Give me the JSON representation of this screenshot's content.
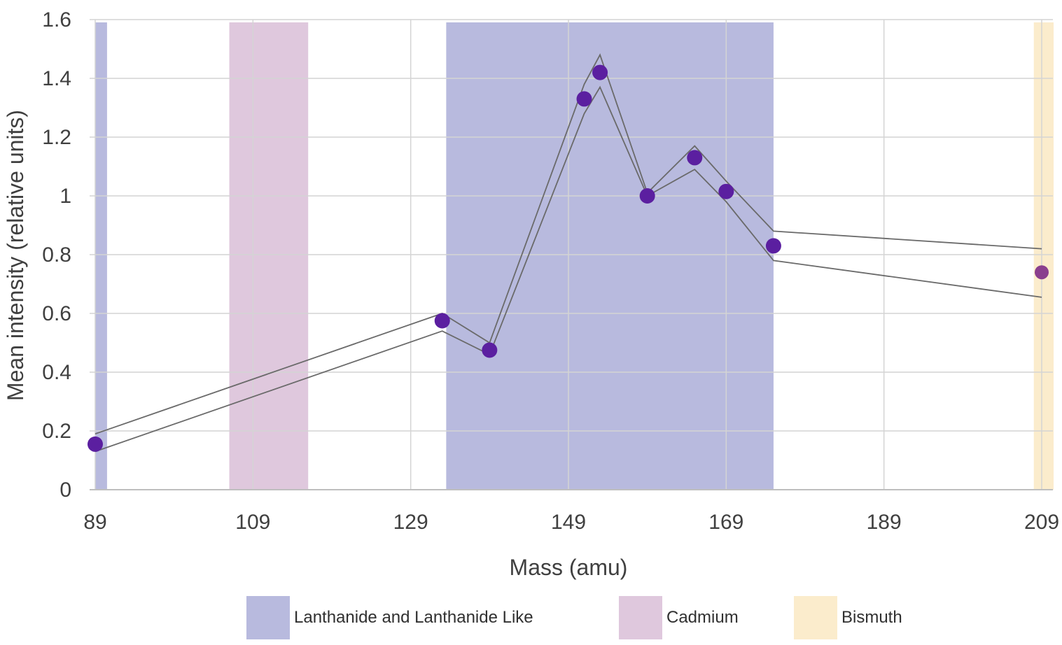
{
  "chart_data": {
    "type": "scatter",
    "xlabel": "Mass (amu)",
    "ylabel": "Mean intensity (relative units)",
    "xlim": [
      89,
      209
    ],
    "ylim": [
      0,
      1.6
    ],
    "x_ticks": [
      89,
      109,
      129,
      149,
      169,
      189,
      209
    ],
    "y_ticks": [
      0,
      0.2,
      0.4,
      0.6,
      0.8,
      1,
      1.2,
      1.4,
      1.6
    ],
    "grid": true,
    "legend_position": "bottom",
    "series": [
      {
        "color": "#5b1fa0",
        "x": [
          89,
          133,
          139,
          151,
          153,
          159,
          165,
          169,
          175,
          209
        ],
        "y": [
          0.155,
          0.575,
          0.475,
          1.33,
          1.42,
          1.0,
          1.13,
          1.015,
          0.83,
          0.74
        ],
        "upper": [
          0.19,
          0.6,
          0.5,
          1.38,
          1.48,
          1.01,
          1.17,
          1.05,
          0.88,
          0.82
        ],
        "lower": [
          0.13,
          0.54,
          0.46,
          1.28,
          1.37,
          1.0,
          1.09,
          0.98,
          0.78,
          0.655
        ]
      }
    ],
    "bands": [
      {
        "name": "Lanthanide and Lanthanide Like",
        "color": "#b8bade",
        "ranges": [
          [
            89,
            90.5
          ],
          [
            133.5,
            175
          ]
        ]
      },
      {
        "name": "Cadmium",
        "color": "#dfc8dd",
        "ranges": [
          [
            106,
            116
          ]
        ]
      },
      {
        "name": "Bismuth",
        "color": "#fbeccc",
        "ranges": [
          [
            208,
            211
          ]
        ]
      }
    ],
    "legend": [
      {
        "label": "Lanthanide and Lanthanide Like",
        "color": "#b8bade"
      },
      {
        "label": "Cadmium",
        "color": "#dfc8dd"
      },
      {
        "label": "Bismuth",
        "color": "#fbeccc"
      }
    ]
  }
}
